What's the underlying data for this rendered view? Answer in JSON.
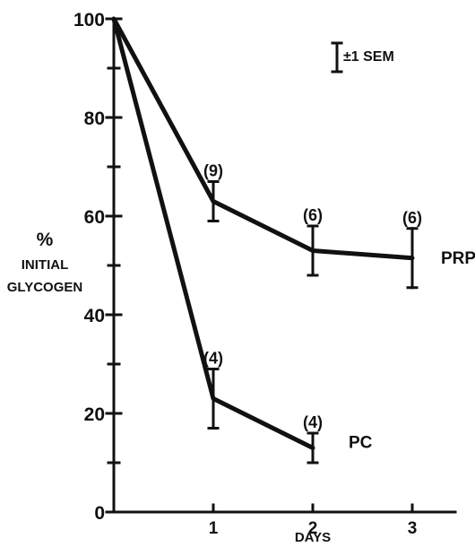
{
  "chart_data": {
    "type": "line",
    "title": "",
    "xlabel": "DAYS",
    "ylabel_lines": [
      "%",
      "INITIAL",
      "GLYCOGEN"
    ],
    "xlim": [
      0,
      3.5
    ],
    "ylim": [
      0,
      100
    ],
    "x_ticks": [
      1,
      2,
      3
    ],
    "x_tick_labels": [
      "1",
      "2",
      "3"
    ],
    "y_ticks": [
      0,
      20,
      40,
      60,
      80,
      100
    ],
    "y_tick_labels": [
      "0",
      "20",
      "40",
      "60",
      "80",
      "100"
    ],
    "y_minor_ticks": [
      10,
      30,
      50,
      70,
      90
    ],
    "grid": false,
    "legend": "",
    "error_bar_key": "±1 SEM",
    "series": [
      {
        "name": "PRP",
        "x": [
          0,
          1,
          2,
          3
        ],
        "y": [
          100,
          63,
          53,
          51.5
        ],
        "sem": [
          0,
          4,
          5,
          6
        ],
        "n_labels": [
          "",
          "(9)",
          "(6)",
          "(6)"
        ]
      },
      {
        "name": "PC",
        "x": [
          0,
          1,
          2
        ],
        "y": [
          100,
          23,
          13
        ],
        "sem": [
          0,
          6,
          3
        ],
        "n_labels": [
          "",
          "(4)",
          "(4)"
        ]
      }
    ]
  }
}
